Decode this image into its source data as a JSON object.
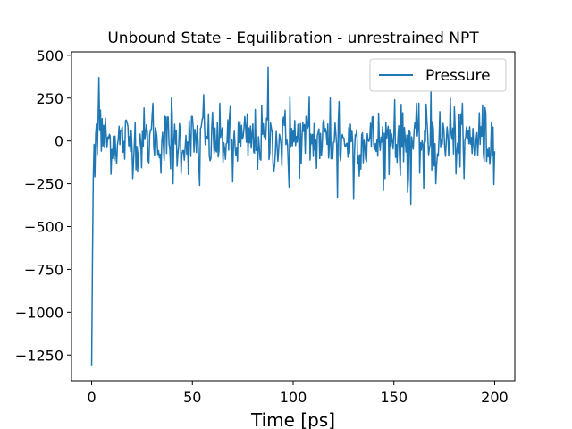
{
  "chart_data": {
    "type": "line",
    "title": "Unbound State - Equilibration - unrestrained NPT",
    "xlabel": "Time [ps]",
    "ylabel": "",
    "xlim": [
      -10,
      210
    ],
    "ylim": [
      -1400,
      520
    ],
    "xticks": [
      0,
      50,
      100,
      150,
      200
    ],
    "yticks": [
      -1250,
      -1000,
      -750,
      -500,
      -250,
      0,
      250,
      500
    ],
    "xtick_labels": [
      "0",
      "50",
      "100",
      "150",
      "200"
    ],
    "ytick_labels": [
      "−1250",
      "−1000",
      "−750",
      "−500",
      "−250",
      "0",
      "250",
      "500"
    ],
    "grid": false,
    "legend_position": "top-right",
    "series": [
      {
        "name": "Pressure",
        "color": "#1f77b4",
        "x_start": 0,
        "x_end": 200,
        "x_step": 0.4,
        "initial_points": [
          [
            0.0,
            -1310
          ],
          [
            0.4,
            -700
          ],
          [
            0.8,
            -220
          ],
          [
            1.2,
            -20
          ],
          [
            1.6,
            -210
          ],
          [
            2.0,
            40
          ],
          [
            2.4,
            100
          ],
          [
            2.8,
            -80
          ],
          [
            3.2,
            120
          ],
          [
            3.6,
            370
          ],
          [
            4.0,
            60
          ],
          [
            4.4,
            180
          ],
          [
            4.8,
            -60
          ],
          [
            5.2,
            130
          ]
        ],
        "notable_points": [
          [
            30.5,
            220
          ],
          [
            39.5,
            250
          ],
          [
            55.5,
            270
          ],
          [
            87.5,
            430
          ],
          [
            98.5,
            260
          ],
          [
            108.0,
            260
          ],
          [
            118.5,
            250
          ],
          [
            123.0,
            230
          ],
          [
            150.5,
            240
          ],
          [
            168.5,
            290
          ],
          [
            178.0,
            250
          ],
          [
            194.0,
            210
          ],
          [
            40.5,
            -250
          ],
          [
            53.5,
            -260
          ],
          [
            70.0,
            -240
          ],
          [
            98.0,
            -270
          ],
          [
            122.0,
            -330
          ],
          [
            130.0,
            -340
          ],
          [
            145.0,
            -290
          ],
          [
            157.0,
            -300
          ],
          [
            158.5,
            -370
          ],
          [
            165.0,
            -280
          ],
          [
            171.0,
            -250
          ],
          [
            185.0,
            -220
          ],
          [
            199.5,
            -255
          ]
        ],
        "noise_amplitude": 95,
        "x_final": 200,
        "y_final": -60
      }
    ]
  }
}
